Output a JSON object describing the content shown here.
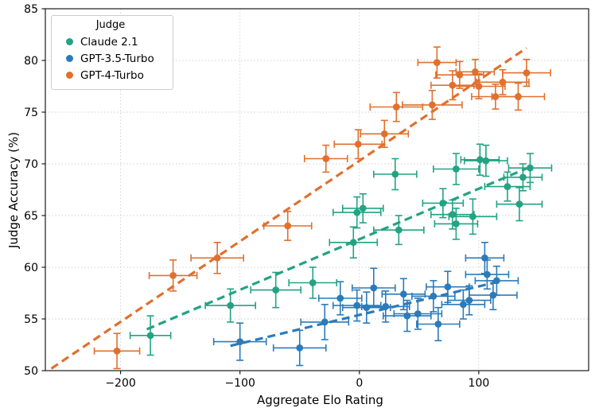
{
  "chart_data": {
    "type": "scatter",
    "title": "",
    "xlabel": "Aggregate Elo Rating",
    "ylabel": "Judge Accuracy (%)",
    "xlim": [
      -263,
      192
    ],
    "ylim": [
      50,
      85
    ],
    "xticks": [
      -200,
      -100,
      0,
      100
    ],
    "yticks": [
      50,
      55,
      60,
      65,
      70,
      75,
      80,
      85
    ],
    "grid": "dotted both axes",
    "legend_title": "Judge",
    "legend_position": "upper left",
    "marker": "circle with x/y error bars",
    "series": [
      {
        "name": "Claude 2.1",
        "color": "#23a383",
        "points": [
          [
            -175,
            53.4,
            17,
            1.9
          ],
          [
            -108,
            56.3,
            21,
            1.6
          ],
          [
            -70,
            57.8,
            21,
            1.7
          ],
          [
            -39,
            58.5,
            20,
            1.5
          ],
          [
            -5,
            62.4,
            20,
            1.5
          ],
          [
            -2,
            65.3,
            20,
            1.5
          ],
          [
            3,
            65.7,
            17,
            1.4
          ],
          [
            30,
            69.0,
            18,
            1.5
          ],
          [
            33,
            63.6,
            21,
            1.4
          ],
          [
            70,
            66.2,
            17,
            1.4
          ],
          [
            78,
            65.1,
            18,
            1.4
          ],
          [
            81,
            64.2,
            18,
            1.5
          ],
          [
            81,
            69.5,
            19,
            1.5
          ],
          [
            95,
            64.9,
            20,
            1.7
          ],
          [
            101,
            70.4,
            16,
            1.5
          ],
          [
            106,
            70.3,
            18,
            1.5
          ],
          [
            124,
            67.8,
            19,
            1.4
          ],
          [
            134,
            66.1,
            19,
            1.6
          ],
          [
            137,
            68.7,
            16,
            1.3
          ],
          [
            143,
            69.6,
            18,
            1.4
          ]
        ],
        "trend": {
          "x1": -178,
          "y1": 54.0,
          "x2": 143,
          "y2": 69.7
        }
      },
      {
        "name": "GPT-3.5-Turbo",
        "color": "#2b7bba",
        "points": [
          [
            -100,
            52.8,
            22,
            1.8
          ],
          [
            -50,
            52.2,
            22,
            1.7
          ],
          [
            -29,
            54.7,
            20,
            1.7
          ],
          [
            -16,
            57.0,
            18,
            1.6
          ],
          [
            -2,
            56.3,
            20,
            1.5
          ],
          [
            6,
            56.1,
            20,
            1.5
          ],
          [
            12,
            58.0,
            18,
            1.9
          ],
          [
            22,
            56.2,
            20,
            1.5
          ],
          [
            37,
            57.4,
            18,
            1.5
          ],
          [
            40,
            55.3,
            20,
            1.5
          ],
          [
            49,
            55.5,
            20,
            1.5
          ],
          [
            62,
            57.2,
            18,
            1.5
          ],
          [
            66,
            54.5,
            18,
            1.6
          ],
          [
            74,
            58.1,
            18,
            1.5
          ],
          [
            87,
            56.4,
            18,
            1.4
          ],
          [
            92,
            56.8,
            18,
            1.4
          ],
          [
            105,
            60.9,
            16,
            1.5
          ],
          [
            107,
            59.3,
            18,
            1.4
          ],
          [
            112,
            57.3,
            20,
            1.4
          ],
          [
            115,
            58.7,
            18,
            1.4
          ]
        ],
        "trend": {
          "x1": -108,
          "y1": 52.4,
          "x2": 120,
          "y2": 58.7
        }
      },
      {
        "name": "GPT-4-Turbo",
        "color": "#e0702e",
        "points": [
          [
            -203,
            51.9,
            19,
            1.7
          ],
          [
            -156,
            59.2,
            20,
            1.5
          ],
          [
            -119,
            60.9,
            22,
            1.5
          ],
          [
            -60,
            64.0,
            20,
            1.4
          ],
          [
            -28,
            70.5,
            18,
            1.3
          ],
          [
            -1,
            71.9,
            20,
            1.4
          ],
          [
            21,
            72.9,
            20,
            1.3
          ],
          [
            31,
            75.5,
            22,
            1.4
          ],
          [
            61,
            75.7,
            25,
            1.4
          ],
          [
            65,
            79.8,
            16,
            1.5
          ],
          [
            78,
            77.6,
            18,
            1.4
          ],
          [
            84,
            78.6,
            20,
            1.3
          ],
          [
            97,
            78.9,
            16,
            1.2
          ],
          [
            100,
            77.5,
            22,
            1.2
          ],
          [
            114,
            76.5,
            20,
            1.2
          ],
          [
            120,
            77.9,
            22,
            1.2
          ],
          [
            133,
            76.5,
            22,
            1.3
          ],
          [
            140,
            78.8,
            20,
            1.3
          ]
        ],
        "trend": {
          "x1": -258,
          "y1": 50.2,
          "x2": 140,
          "y2": 81.2
        }
      }
    ]
  }
}
